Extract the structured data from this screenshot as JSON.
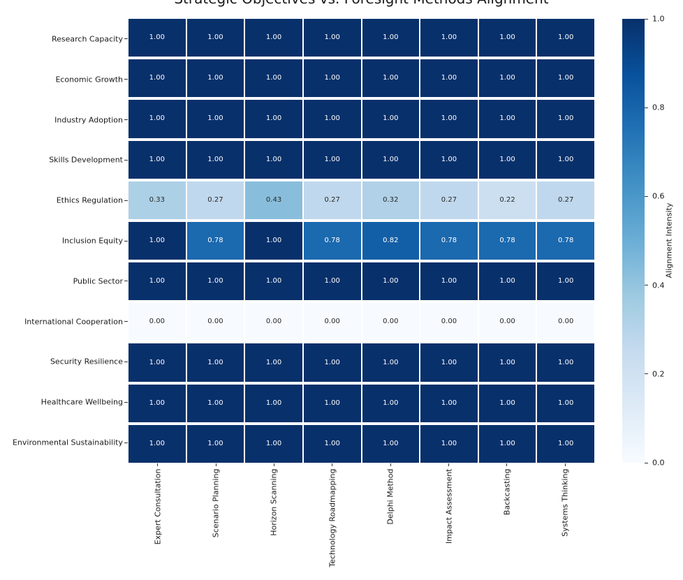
{
  "chart_data": {
    "type": "heatmap",
    "title": "Strategic Objectives vs. Foresight Methods Alignment",
    "rows": [
      "Research Capacity",
      "Economic Growth",
      "Industry Adoption",
      "Skills Development",
      "Ethics Regulation",
      "Inclusion Equity",
      "Public Sector",
      "International Cooperation",
      "Security Resilience",
      "Healthcare Wellbeing",
      "Environmental Sustainability"
    ],
    "columns": [
      "Expert Consultation",
      "Scenario Planning",
      "Horizon Scanning",
      "Technology Roadmapping",
      "Delphi Method",
      "Impact Assessment",
      "Backcasting",
      "Systems Thinking"
    ],
    "values": [
      [
        1.0,
        1.0,
        1.0,
        1.0,
        1.0,
        1.0,
        1.0,
        1.0
      ],
      [
        1.0,
        1.0,
        1.0,
        1.0,
        1.0,
        1.0,
        1.0,
        1.0
      ],
      [
        1.0,
        1.0,
        1.0,
        1.0,
        1.0,
        1.0,
        1.0,
        1.0
      ],
      [
        1.0,
        1.0,
        1.0,
        1.0,
        1.0,
        1.0,
        1.0,
        1.0
      ],
      [
        0.33,
        0.27,
        0.43,
        0.27,
        0.32,
        0.27,
        0.22,
        0.27
      ],
      [
        1.0,
        0.78,
        1.0,
        0.78,
        0.82,
        0.78,
        0.78,
        0.78
      ],
      [
        1.0,
        1.0,
        1.0,
        1.0,
        1.0,
        1.0,
        1.0,
        1.0
      ],
      [
        0.0,
        0.0,
        0.0,
        0.0,
        0.0,
        0.0,
        0.0,
        0.0
      ],
      [
        1.0,
        1.0,
        1.0,
        1.0,
        1.0,
        1.0,
        1.0,
        1.0
      ],
      [
        1.0,
        1.0,
        1.0,
        1.0,
        1.0,
        1.0,
        1.0,
        1.0
      ],
      [
        1.0,
        1.0,
        1.0,
        1.0,
        1.0,
        1.0,
        1.0,
        1.0
      ]
    ],
    "value_format_decimals": 2,
    "colorbar": {
      "label": "Alignment Intensity",
      "ticks": [
        "1.0",
        "0.8",
        "0.6",
        "0.4",
        "0.2",
        "0.0"
      ],
      "min": 0,
      "max": 1
    },
    "colormap": {
      "name": "Blues",
      "stops": [
        "#f7fbff",
        "#deebf7",
        "#c6dbef",
        "#9ecae1",
        "#6baed6",
        "#4292c6",
        "#2171b5",
        "#08519c",
        "#08306b"
      ]
    },
    "annotation_colors": {
      "light_text": "#ffffff",
      "dark_text": "#262626"
    },
    "layout": {
      "grid_on": false,
      "legend_position": "right-colorbar"
    }
  }
}
